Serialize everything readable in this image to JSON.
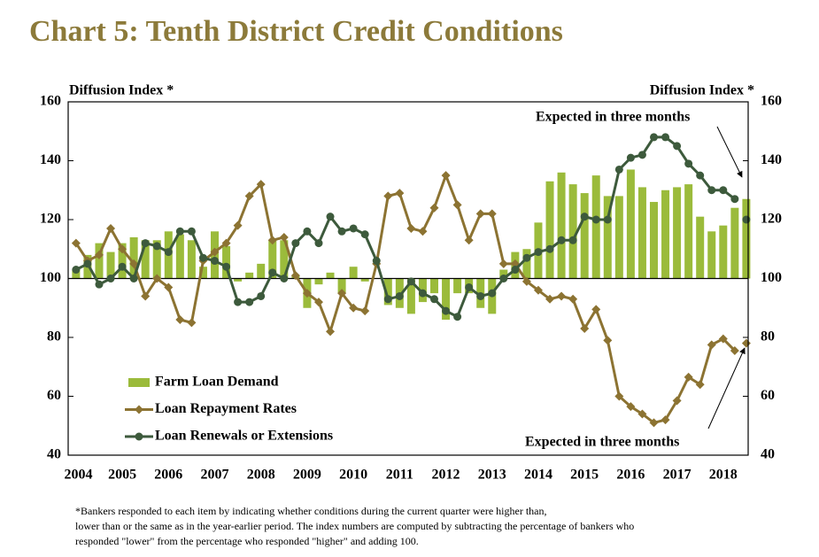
{
  "chart_data": {
    "type": "combo",
    "title": "Chart 5: Tenth District Credit Conditions",
    "ylabel": "Diffusion Index *",
    "y2label": "Diffusion Index *",
    "x": [
      2004.25,
      2004.5,
      2004.75,
      2005,
      2005.25,
      2005.5,
      2005.75,
      2006,
      2006.25,
      2006.5,
      2006.75,
      2007,
      2007.25,
      2007.5,
      2007.75,
      2008,
      2008.25,
      2008.5,
      2008.75,
      2009,
      2009.25,
      2009.5,
      2009.75,
      2010,
      2010.25,
      2010.5,
      2010.75,
      2011,
      2011.25,
      2011.5,
      2011.75,
      2012,
      2012.25,
      2012.5,
      2012.75,
      2013,
      2013.25,
      2013.5,
      2013.75,
      2014,
      2014.25,
      2014.5,
      2014.75,
      2015,
      2015.25,
      2015.5,
      2015.75,
      2016,
      2016.25,
      2016.5,
      2016.75,
      2017,
      2017.25,
      2017.5,
      2017.75,
      2018,
      2018.25,
      2018.5
    ],
    "expected_x": 2018.75,
    "xlim": [
      2004.08,
      2018.79
    ],
    "xticks": [
      {
        "value": 2004.3,
        "label": "2004"
      },
      {
        "value": 2005.25,
        "label": "2005"
      },
      {
        "value": 2006.25,
        "label": "2006"
      },
      {
        "value": 2007.25,
        "label": "2007"
      },
      {
        "value": 2008.25,
        "label": "2008"
      },
      {
        "value": 2009.25,
        "label": "2009"
      },
      {
        "value": 2010.25,
        "label": "2010"
      },
      {
        "value": 2011.25,
        "label": "2011"
      },
      {
        "value": 2012.25,
        "label": "2012"
      },
      {
        "value": 2013.25,
        "label": "2013"
      },
      {
        "value": 2014.25,
        "label": "2014"
      },
      {
        "value": 2015.25,
        "label": "2015"
      },
      {
        "value": 2016.25,
        "label": "2016"
      },
      {
        "value": 2017.25,
        "label": "2017"
      },
      {
        "value": 2018.25,
        "label": "2018"
      }
    ],
    "ylim": [
      40,
      160
    ],
    "yticks": [
      40,
      60,
      80,
      100,
      120,
      140,
      160
    ],
    "y2lim": [
      40,
      160
    ],
    "y2ticks": [
      40,
      60,
      80,
      100,
      120,
      140,
      160
    ],
    "baseline": 100,
    "series": [
      {
        "name": "Farm Loan Demand",
        "kind": "bar",
        "color": "#9bbb3b",
        "values": [
          103,
          108,
          112,
          109,
          112,
          114,
          113,
          113,
          116,
          115,
          113,
          104,
          116,
          111,
          99,
          102,
          105,
          113,
          113,
          101,
          90,
          98,
          102,
          95,
          104,
          99,
          100,
          91,
          90,
          88,
          92,
          95,
          86,
          95,
          95,
          90,
          88,
          103,
          109,
          110,
          119,
          133,
          136,
          132,
          129,
          135,
          128,
          128,
          137,
          131,
          126,
          130,
          131,
          132,
          121,
          116,
          118,
          124
        ],
        "expected": 127
      },
      {
        "name": "Loan Repayment Rates",
        "kind": "line",
        "marker": "diamond",
        "color": "#8c7332",
        "values": [
          112,
          106,
          108,
          117,
          110,
          105,
          94,
          100,
          97,
          86,
          85,
          106,
          109,
          112,
          118,
          128,
          132,
          113,
          114,
          101,
          95,
          92,
          82,
          95,
          90,
          89,
          105,
          128,
          129,
          117,
          116,
          124,
          135,
          125,
          113,
          122,
          122,
          105,
          105,
          99,
          96,
          93,
          94,
          93,
          83,
          89.5,
          79,
          60,
          56.5,
          54,
          51,
          52,
          58.5,
          66.5,
          64,
          77.5,
          79.5,
          75.5
        ],
        "expected": 78
      },
      {
        "name": "Loan Renewals or Extensions",
        "kind": "line",
        "marker": "circle",
        "color": "#3d5a3c",
        "values": [
          103,
          105,
          98,
          100,
          104,
          100,
          112,
          111,
          109,
          116,
          116,
          107,
          106,
          104,
          92,
          92,
          94,
          102,
          100,
          112,
          116,
          112,
          121,
          116,
          117,
          115,
          106,
          93,
          94,
          99,
          95,
          93,
          89,
          87,
          97,
          94,
          95,
          100,
          103,
          107,
          109,
          110,
          113,
          113,
          121,
          120,
          120,
          137,
          141,
          142,
          148,
          148,
          145,
          139,
          135,
          130,
          130,
          127
        ],
        "expected": 120
      }
    ],
    "annotations": [
      "Expected in three months",
      "Expected in three months"
    ],
    "footnote": [
      "*Bankers responded to each item by indicating whether conditions during the current quarter were higher than,",
      "lower than or the same as in the year-earlier period.  The index numbers are computed by subtracting the percentage of bankers who",
      "responded \"lower\" from the percentage who responded \"higher\" and adding 100."
    ]
  }
}
